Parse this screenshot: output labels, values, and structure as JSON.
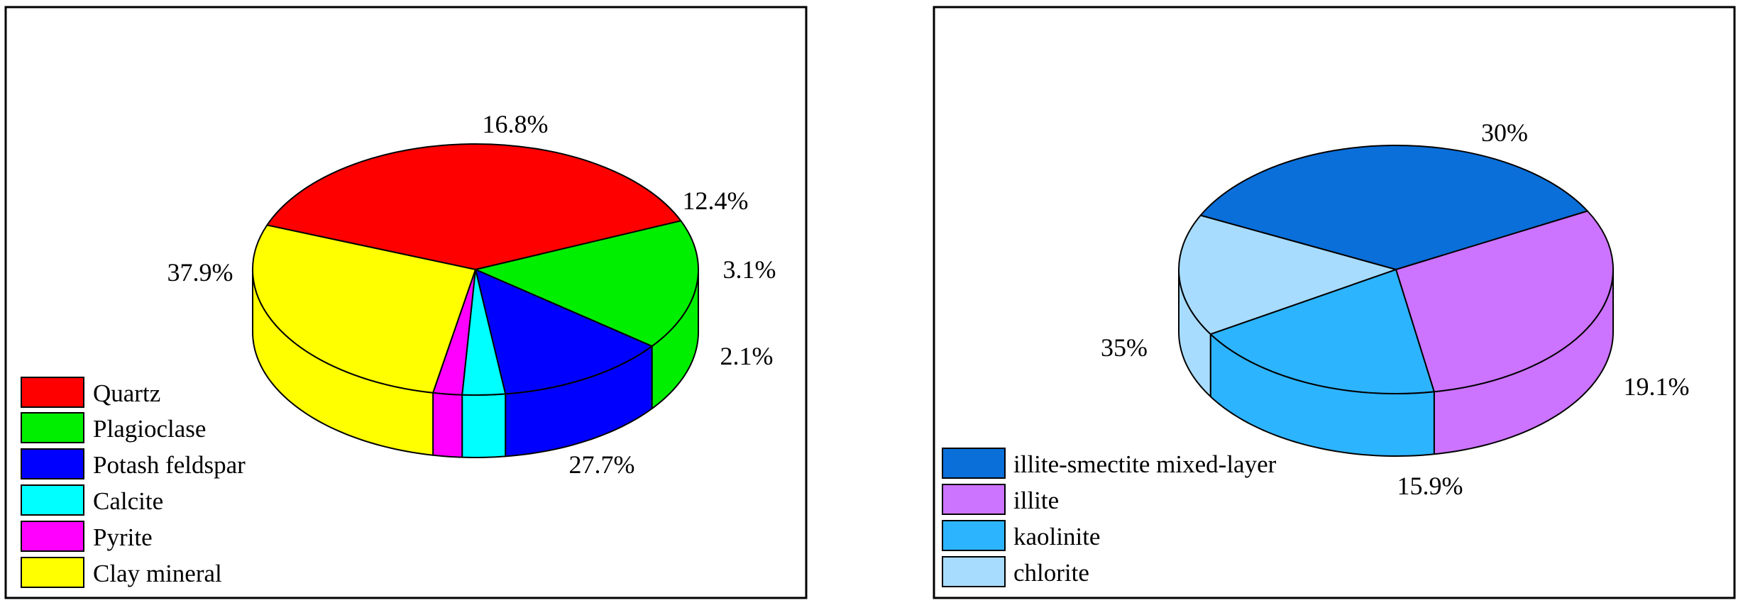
{
  "chart_data": [
    {
      "type": "pie",
      "categories": [
        "Quartz",
        "Plagioclase",
        "Potash feldspar",
        "Calcite",
        "Pyrite",
        "Clay mineral"
      ],
      "values": [
        37.9,
        16.8,
        12.4,
        3.1,
        2.1,
        27.7
      ],
      "data_labels": [
        "37.9%",
        "16.8%",
        "12.4%",
        "3.1%",
        "2.1%",
        "27.7%"
      ],
      "colors": [
        "#ff0000",
        "#00ee00",
        "#0000ff",
        "#00ffff",
        "#ff00ff",
        "#ffff00"
      ],
      "legend_position": "bottom-left",
      "style": "3d"
    },
    {
      "type": "pie",
      "categories": [
        "illite-smectite mixed-layer",
        "illite",
        "kaolinite",
        "chlorite"
      ],
      "values": [
        35,
        30,
        19.1,
        15.9
      ],
      "data_labels": [
        "35%",
        "30%",
        "19.1%",
        "15.9%"
      ],
      "colors": [
        "#0a6fd9",
        "#cc73ff",
        "#2db4ff",
        "#a8dcff"
      ],
      "legend_position": "bottom-left",
      "style": "3d"
    }
  ]
}
